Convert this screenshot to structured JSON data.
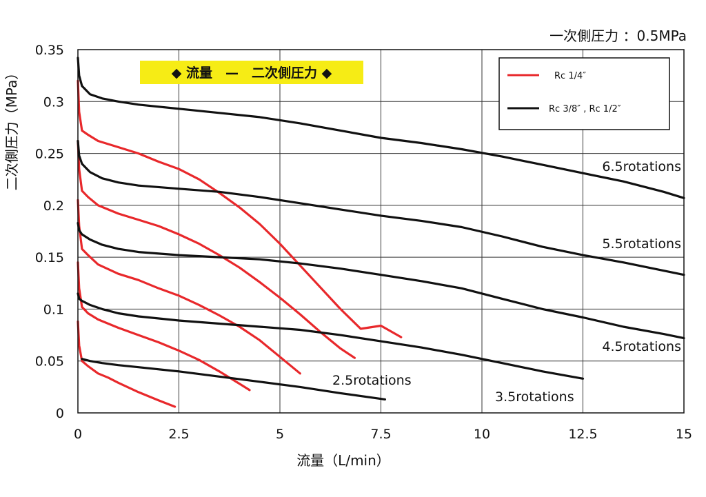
{
  "chart_data": {
    "type": "line",
    "title": "◆ 流量　—　二次側圧力 ◆",
    "condition": "一次側圧力 ：0.5MPa",
    "xlabel": "流量（L/min）",
    "ylabel": "二次側圧力（MPa）",
    "xlim": [
      0,
      15
    ],
    "ylim": [
      0,
      0.35
    ],
    "xticks": [
      0,
      2.5,
      5,
      7.5,
      10,
      12.5,
      15
    ],
    "xtick_labels": [
      "0",
      "2.5",
      "5",
      "7.5",
      "10",
      "12.5",
      "15"
    ],
    "yticks": [
      0,
      0.05,
      0.1,
      0.15,
      0.2,
      0.25,
      0.3,
      0.35
    ],
    "ytick_labels": [
      "0",
      "0.05",
      "0.1",
      "0.15",
      "0.2",
      "0.25",
      "0.3",
      "0.35"
    ],
    "grid": true,
    "legend_position": "top-right",
    "legend": [
      {
        "label": "Rc 1/4″",
        "color": "#e8282b"
      },
      {
        "label": "Rc 3/8″ , Rc 1/2″",
        "color": "#111111"
      }
    ],
    "rotation_labels": [
      "6.5rotations",
      "5.5rotations",
      "4.5rotations",
      "3.5rotations",
      "2.5rotations"
    ],
    "series": [
      {
        "group": "Rc 1/4″",
        "color": "#e8282b",
        "x": [
          0,
          0.03,
          0.1,
          0.25,
          0.5,
          1,
          1.5,
          2,
          2.5,
          3,
          3.5,
          4,
          4.5,
          5,
          5.5,
          6,
          6.5,
          7,
          7.5,
          8
        ],
        "y": [
          0.32,
          0.29,
          0.272,
          0.268,
          0.262,
          0.256,
          0.25,
          0.242,
          0.235,
          0.225,
          0.212,
          0.198,
          0.182,
          0.163,
          0.142,
          0.121,
          0.1,
          0.081,
          0.084,
          0.073
        ]
      },
      {
        "group": "Rc 1/4″",
        "color": "#e8282b",
        "x": [
          0,
          0.03,
          0.1,
          0.25,
          0.5,
          1,
          1.5,
          2,
          2.5,
          3,
          3.5,
          4,
          4.5,
          5,
          5.5,
          6,
          6.5,
          6.85
        ],
        "y": [
          0.262,
          0.235,
          0.214,
          0.208,
          0.2,
          0.192,
          0.186,
          0.18,
          0.172,
          0.163,
          0.152,
          0.14,
          0.126,
          0.111,
          0.095,
          0.078,
          0.062,
          0.053
        ]
      },
      {
        "group": "Rc 1/4″",
        "color": "#e8282b",
        "x": [
          0,
          0.03,
          0.1,
          0.25,
          0.5,
          1,
          1.5,
          2,
          2.5,
          3,
          3.5,
          4,
          4.5,
          5,
          5.5
        ],
        "y": [
          0.205,
          0.18,
          0.158,
          0.152,
          0.143,
          0.134,
          0.128,
          0.12,
          0.113,
          0.104,
          0.094,
          0.083,
          0.07,
          0.054,
          0.038
        ]
      },
      {
        "group": "Rc 1/4″",
        "color": "#e8282b",
        "x": [
          0,
          0.03,
          0.1,
          0.25,
          0.5,
          1,
          1.5,
          2,
          2.5,
          3,
          3.5,
          4,
          4.25
        ],
        "y": [
          0.145,
          0.12,
          0.102,
          0.096,
          0.09,
          0.082,
          0.075,
          0.068,
          0.06,
          0.051,
          0.04,
          0.028,
          0.022
        ]
      },
      {
        "group": "Rc 1/4″",
        "color": "#e8282b",
        "x": [
          0,
          0.03,
          0.1,
          0.25,
          0.5,
          0.75,
          1,
          1.5,
          2,
          2.4
        ],
        "y": [
          0.088,
          0.065,
          0.05,
          0.045,
          0.038,
          0.034,
          0.029,
          0.02,
          0.012,
          0.006
        ]
      },
      {
        "group": "Rc 3/8″ , Rc 1/2″",
        "color": "#111111",
        "label": "6.5rotations",
        "x": [
          0,
          0.03,
          0.1,
          0.3,
          0.6,
          1,
          1.5,
          2.5,
          3.5,
          4.5,
          5.5,
          6.5,
          7.5,
          8.5,
          9.5,
          10.5,
          11.5,
          12.5,
          13.5,
          14.5,
          15
        ],
        "y": [
          0.342,
          0.325,
          0.315,
          0.307,
          0.303,
          0.3,
          0.297,
          0.293,
          0.289,
          0.285,
          0.279,
          0.272,
          0.265,
          0.26,
          0.254,
          0.247,
          0.239,
          0.231,
          0.223,
          0.213,
          0.207
        ]
      },
      {
        "group": "Rc 3/8″ , Rc 1/2″",
        "color": "#111111",
        "label": "5.5rotations",
        "x": [
          0,
          0.03,
          0.1,
          0.3,
          0.6,
          1,
          1.5,
          2.5,
          3.5,
          4.5,
          5.5,
          6.5,
          7.5,
          8.5,
          9.5,
          10.5,
          11.5,
          12.5,
          13.5,
          14.5,
          15
        ],
        "y": [
          0.262,
          0.248,
          0.24,
          0.232,
          0.226,
          0.222,
          0.219,
          0.216,
          0.213,
          0.208,
          0.202,
          0.196,
          0.19,
          0.185,
          0.179,
          0.17,
          0.16,
          0.152,
          0.145,
          0.137,
          0.133
        ]
      },
      {
        "group": "Rc 3/8″ , Rc 1/2″",
        "color": "#111111",
        "label": "4.5rotations",
        "x": [
          0,
          0.03,
          0.1,
          0.3,
          0.6,
          1,
          1.5,
          2.5,
          3.5,
          4.5,
          5.5,
          6.5,
          7.5,
          8.5,
          9.5,
          10.5,
          11.5,
          12.5,
          13.5,
          14.5,
          15
        ],
        "y": [
          0.183,
          0.176,
          0.172,
          0.167,
          0.162,
          0.158,
          0.155,
          0.152,
          0.15,
          0.148,
          0.144,
          0.139,
          0.133,
          0.127,
          0.12,
          0.11,
          0.1,
          0.092,
          0.083,
          0.076,
          0.072
        ]
      },
      {
        "group": "Rc 3/8″ , Rc 1/2″",
        "color": "#111111",
        "label": "3.5rotations",
        "x": [
          0,
          0.03,
          0.1,
          0.3,
          0.6,
          1,
          1.5,
          2.5,
          3.5,
          4.5,
          5.5,
          6.5,
          7.5,
          8.5,
          9.5,
          10.5,
          11.5,
          12.5
        ],
        "y": [
          0.115,
          0.11,
          0.108,
          0.104,
          0.1,
          0.096,
          0.093,
          0.089,
          0.086,
          0.083,
          0.08,
          0.075,
          0.069,
          0.063,
          0.056,
          0.048,
          0.04,
          0.033
        ]
      },
      {
        "group": "Rc 3/8″ , Rc 1/2″",
        "color": "#111111",
        "label": "2.5rotations",
        "x": [
          0.1,
          0.3,
          0.6,
          1,
          1.5,
          2.5,
          3.5,
          4.5,
          5.5,
          6.5,
          7.6
        ],
        "y": [
          0.052,
          0.05,
          0.048,
          0.046,
          0.044,
          0.04,
          0.035,
          0.03,
          0.025,
          0.019,
          0.013
        ]
      }
    ]
  }
}
